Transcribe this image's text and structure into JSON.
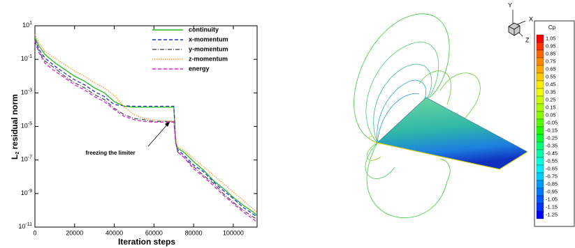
{
  "chart_data": [
    {
      "type": "line",
      "xlabel": "Iteration steps",
      "ylabel": "L2 residual norm",
      "yscale": "log",
      "annotation": "freezing the limiter",
      "xlim": [
        0,
        112000
      ],
      "xticks": [
        0,
        20000,
        40000,
        60000,
        80000,
        100000
      ],
      "ylim": [
        1e-11,
        10
      ],
      "yticks": [
        {
          "value": 10,
          "label": "10^1"
        },
        {
          "value": 0.1,
          "label": "10^-1"
        },
        {
          "value": 0.001,
          "label": "10^-3"
        },
        {
          "value": 1e-05,
          "label": "10^-5"
        },
        {
          "value": 1e-07,
          "label": "10^-7"
        },
        {
          "value": 1e-09,
          "label": "10^-9"
        },
        {
          "value": 1e-11,
          "label": "10^-11"
        }
      ],
      "x": [
        0,
        2000,
        5000,
        10000,
        15000,
        20000,
        25000,
        30000,
        35000,
        40000,
        45000,
        50000,
        55000,
        60000,
        65000,
        70000,
        71000,
        72000,
        75000,
        80000,
        85000,
        90000,
        95000,
        100000,
        105000,
        110000,
        112000
      ],
      "series": [
        {
          "name": "continuity",
          "color": "#22bb22",
          "dash": "solid",
          "values": [
            2,
            0.63,
            0.2,
            0.063,
            0.025,
            0.01,
            0.005,
            0.002,
            0.001,
            0.0003,
            0.00016,
            0.00014,
            0.00014,
            0.00014,
            0.00014,
            0.00014,
            1e-06,
            5e-07,
            3e-07,
            8e-08,
            2.5e-08,
            6e-09,
            2e-09,
            6e-10,
            2e-10,
            8e-11,
            5e-11
          ]
        },
        {
          "name": "x-momentum",
          "color": "#2233cc",
          "dash": "dashed",
          "values": [
            1.5,
            0.4,
            0.12,
            0.04,
            0.015,
            0.006,
            0.003,
            0.0012,
            0.0006,
            0.0002,
            0.00017,
            0.00016,
            0.00016,
            0.00016,
            0.00016,
            0.00016,
            1e-06,
            4e-07,
            2e-07,
            5e-08,
            2e-08,
            5e-09,
            1.5e-09,
            5e-10,
            1.5e-10,
            6e-11,
            4e-11
          ]
        },
        {
          "name": "y-momentum",
          "color": "#555555",
          "dash": "dashdot",
          "values": [
            1.5,
            0.3,
            0.08,
            0.03,
            0.01,
            0.004,
            0.002,
            0.0008,
            0.0004,
            0.00012,
            5e-05,
            3e-05,
            2.5e-05,
            2e-05,
            2e-05,
            2e-05,
            1e-06,
            3e-07,
            1.5e-07,
            4e-08,
            1.2e-08,
            4e-09,
            1e-09,
            3e-10,
            1e-10,
            4e-11,
            3e-11
          ]
        },
        {
          "name": "z-momentum",
          "color": "#ff9933",
          "dash": "dotted",
          "values": [
            3,
            1,
            0.3,
            0.12,
            0.05,
            0.02,
            0.01,
            0.004,
            0.002,
            0.0007,
            0.00015,
            5e-05,
            3e-05,
            2.5e-05,
            2.2e-05,
            2e-05,
            2e-06,
            6e-07,
            4e-07,
            1.2e-07,
            4e-08,
            1.2e-08,
            4e-09,
            1.2e-09,
            4e-10,
            1.2e-10,
            8e-11
          ]
        },
        {
          "name": "energy",
          "color": "#dd22dd",
          "dash": "dashed",
          "values": [
            1.2,
            0.25,
            0.06,
            0.02,
            0.008,
            0.003,
            0.0015,
            0.0006,
            0.0003,
            0.0001,
            4e-05,
            2.5e-05,
            2e-05,
            1.8e-05,
            1.8e-05,
            1.8e-05,
            1e-06,
            3e-07,
            1.5e-07,
            3e-08,
            1e-08,
            3e-09,
            8e-10,
            2.5e-10,
            8e-11,
            3e-11,
            2e-11
          ]
        }
      ]
    },
    {
      "type": "colorbar",
      "title": "Cp",
      "levels": [
        1.05,
        0.95,
        0.85,
        0.75,
        0.65,
        0.55,
        0.45,
        0.35,
        0.25,
        0.15,
        0.05,
        -0.05,
        -0.15,
        -0.25,
        -0.35,
        -0.45,
        -0.55,
        -0.65,
        -0.75,
        -0.85,
        -0.95,
        -1.05,
        -1.15,
        -1.25
      ],
      "colors": [
        "#ff0000",
        "#ff3300",
        "#ff6600",
        "#ff8800",
        "#ffaa00",
        "#ffcc00",
        "#ffee00",
        "#eeff00",
        "#ccff00",
        "#aaff00",
        "#88ff00",
        "#55ff00",
        "#22ff00",
        "#00ff33",
        "#00ff77",
        "#00ffaa",
        "#00ffdd",
        "#00eeff",
        "#00ccff",
        "#0099ff",
        "#0077ff",
        "#0055ff",
        "#0033ff",
        "#0000ff"
      ]
    }
  ],
  "triad": [
    "Y",
    "X",
    "Z"
  ]
}
